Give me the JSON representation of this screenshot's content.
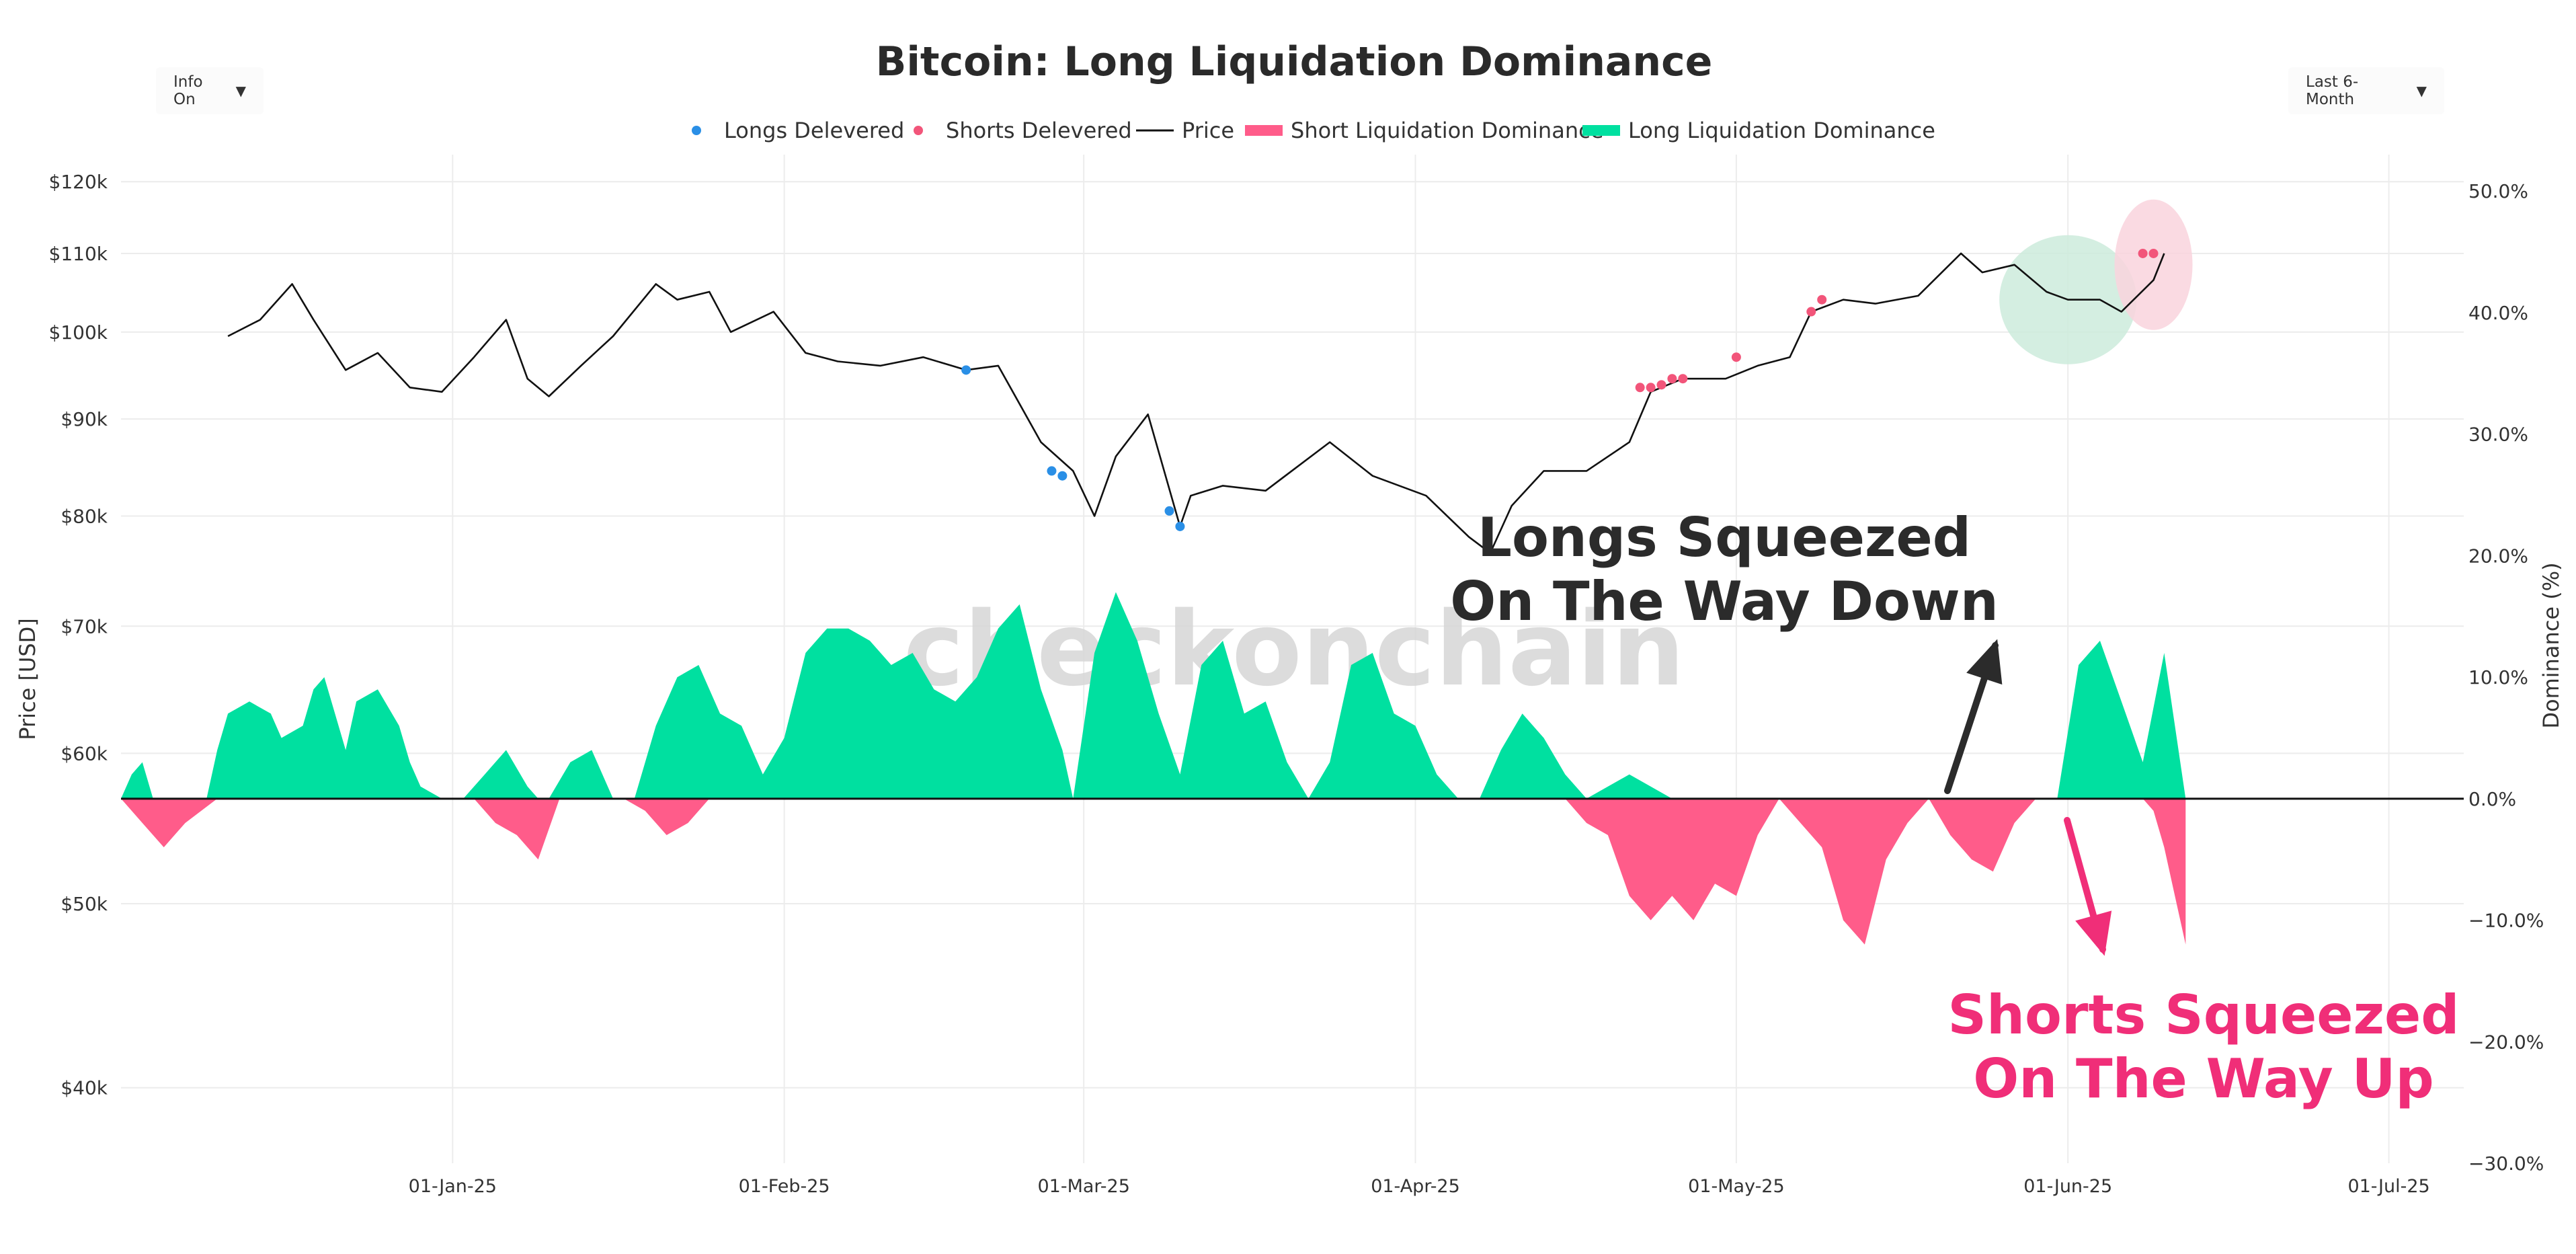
{
  "header": {
    "info_dropdown": "Info On",
    "range_dropdown": "Last 6-Month"
  },
  "chart_data": {
    "type": "line",
    "title": "Bitcoin: Long Liquidation Dominance",
    "watermark": "checkonchain",
    "legend_position": "top-center",
    "legend": [
      {
        "name": "Longs Delevered",
        "kind": "marker",
        "color": "#2a8fe6"
      },
      {
        "name": "Shorts Delevered",
        "kind": "marker",
        "color": "#f2557a"
      },
      {
        "name": "Price",
        "kind": "line",
        "color": "#111111"
      },
      {
        "name": "Short Liquidation Dominance",
        "kind": "band",
        "color": "#ff5c8a"
      },
      {
        "name": "Long Liquidation Dominance",
        "kind": "band",
        "color": "#00e0a0"
      }
    ],
    "xlabel": "",
    "y_left_label": "Price [USD]",
    "y_right_label": "Dominance (%)",
    "x_range": [
      "2024-12-01",
      "2025-07-08"
    ],
    "x_ticks": [
      {
        "date": "2025-01-01",
        "label": "01-Jan-25"
      },
      {
        "date": "2025-02-01",
        "label": "01-Feb-25"
      },
      {
        "date": "2025-03-01",
        "label": "01-Mar-25"
      },
      {
        "date": "2025-04-01",
        "label": "01-Apr-25"
      },
      {
        "date": "2025-05-01",
        "label": "01-May-25"
      },
      {
        "date": "2025-06-01",
        "label": "01-Jun-25"
      },
      {
        "date": "2025-07-01",
        "label": "01-Jul-25"
      }
    ],
    "y_left_scale": "log",
    "y_left_range": [
      36500,
      124000
    ],
    "y_left_ticks": [
      {
        "value": 40000,
        "label": "$40k"
      },
      {
        "value": 50000,
        "label": "$50k"
      },
      {
        "value": 60000,
        "label": "$60k"
      },
      {
        "value": 70000,
        "label": "$70k"
      },
      {
        "value": 80000,
        "label": "$80k"
      },
      {
        "value": 90000,
        "label": "$90k"
      },
      {
        "value": 100000,
        "label": "$100k"
      },
      {
        "value": 110000,
        "label": "$110k"
      },
      {
        "value": 120000,
        "label": "$120k"
      }
    ],
    "y_right_range": [
      -30,
      53
    ],
    "y_right_ticks": [
      {
        "value": 50,
        "label": "50.0%"
      },
      {
        "value": 40,
        "label": "40.0%"
      },
      {
        "value": 30,
        "label": "30.0%"
      },
      {
        "value": 20,
        "label": "20.0%"
      },
      {
        "value": 10,
        "label": "10.0%"
      },
      {
        "value": 0,
        "label": "0.0%"
      },
      {
        "value": -10,
        "label": "−10.0%"
      },
      {
        "value": -20,
        "label": "−20.0%"
      },
      {
        "value": -30,
        "label": "−30.0%"
      }
    ],
    "grid": true,
    "series": [
      {
        "name": "Price",
        "x": [
          "2024-12-11",
          "2024-12-14",
          "2024-12-17",
          "2024-12-19",
          "2024-12-22",
          "2024-12-25",
          "2024-12-28",
          "2024-12-31",
          "2025-01-03",
          "2025-01-06",
          "2025-01-08",
          "2025-01-10",
          "2025-01-13",
          "2025-01-16",
          "2025-01-20",
          "2025-01-22",
          "2025-01-25",
          "2025-01-27",
          "2025-01-31",
          "2025-02-03",
          "2025-02-06",
          "2025-02-10",
          "2025-02-14",
          "2025-02-18",
          "2025-02-21",
          "2025-02-25",
          "2025-02-28",
          "2025-03-02",
          "2025-03-04",
          "2025-03-07",
          "2025-03-10",
          "2025-03-11",
          "2025-03-14",
          "2025-03-18",
          "2025-03-24",
          "2025-03-28",
          "2025-04-02",
          "2025-04-06",
          "2025-04-08",
          "2025-04-10",
          "2025-04-13",
          "2025-04-17",
          "2025-04-21",
          "2025-04-23",
          "2025-04-26",
          "2025-04-30",
          "2025-05-03",
          "2025-05-06",
          "2025-05-08",
          "2025-05-11",
          "2025-05-14",
          "2025-05-18",
          "2025-05-22",
          "2025-05-24",
          "2025-05-27",
          "2025-05-30",
          "2025-06-01",
          "2025-06-04",
          "2025-06-06",
          "2025-06-09",
          "2025-06-10"
        ],
        "values": [
          99500,
          101500,
          106000,
          101500,
          95500,
          97500,
          93500,
          93000,
          97000,
          101500,
          94500,
          92500,
          96000,
          99500,
          106000,
          104000,
          105000,
          100000,
          102500,
          97500,
          96500,
          96000,
          97000,
          95500,
          96000,
          87500,
          84500,
          80000,
          86000,
          90500,
          79000,
          82000,
          83000,
          82500,
          87500,
          84000,
          82000,
          78000,
          76500,
          81000,
          84500,
          84500,
          87500,
          93000,
          94500,
          94500,
          96000,
          97000,
          102500,
          104000,
          103500,
          104500,
          110000,
          107500,
          108500,
          105000,
          104000,
          104000,
          102500,
          106500,
          110000
        ]
      },
      {
        "name": "Long Liquidation Dominance",
        "x": [
          "2024-12-01",
          "2024-12-02",
          "2024-12-03",
          "2024-12-04",
          "2024-12-05",
          "2024-12-07",
          "2024-12-09",
          "2024-12-10",
          "2024-12-11",
          "2024-12-13",
          "2024-12-15",
          "2024-12-16",
          "2024-12-18",
          "2024-12-19",
          "2024-12-20",
          "2024-12-22",
          "2024-12-23",
          "2024-12-25",
          "2024-12-27",
          "2024-12-28",
          "2024-12-29",
          "2024-12-31",
          "2025-01-02",
          "2025-01-04",
          "2025-01-06",
          "2025-01-08",
          "2025-01-09",
          "2025-01-10",
          "2025-01-12",
          "2025-01-14",
          "2025-01-16",
          "2025-01-18",
          "2025-01-20",
          "2025-01-22",
          "2025-01-24",
          "2025-01-26",
          "2025-01-28",
          "2025-01-30",
          "2025-02-01",
          "2025-02-03",
          "2025-02-05",
          "2025-02-07",
          "2025-02-09",
          "2025-02-11",
          "2025-02-13",
          "2025-02-15",
          "2025-02-17",
          "2025-02-19",
          "2025-02-21",
          "2025-02-23",
          "2025-02-25",
          "2025-02-27",
          "2025-02-28",
          "2025-03-02",
          "2025-03-04",
          "2025-03-06",
          "2025-03-08",
          "2025-03-10",
          "2025-03-12",
          "2025-03-14",
          "2025-03-16",
          "2025-03-18",
          "2025-03-20",
          "2025-03-22",
          "2025-03-24",
          "2025-03-26",
          "2025-03-28",
          "2025-03-30",
          "2025-04-01",
          "2025-04-03",
          "2025-04-05",
          "2025-04-07",
          "2025-04-09",
          "2025-04-11",
          "2025-04-13",
          "2025-04-15",
          "2025-04-17",
          "2025-04-19",
          "2025-04-21",
          "2025-04-23",
          "2025-04-25",
          "2025-04-27",
          "2025-04-29",
          "2025-05-01",
          "2025-05-03",
          "2025-05-05",
          "2025-05-07",
          "2025-05-09",
          "2025-05-11",
          "2025-05-13",
          "2025-05-15",
          "2025-05-17",
          "2025-05-19",
          "2025-05-21",
          "2025-05-23",
          "2025-05-25",
          "2025-05-27",
          "2025-05-29",
          "2025-05-31",
          "2025-06-02",
          "2025-06-04",
          "2025-06-06",
          "2025-06-08",
          "2025-06-10",
          "2025-06-12"
        ],
        "values": [
          0,
          2,
          3,
          0,
          0,
          0,
          0,
          4,
          7,
          8,
          7,
          5,
          6,
          9,
          10,
          4,
          8,
          9,
          6,
          3,
          1,
          0,
          0,
          2,
          4,
          1,
          0,
          0,
          3,
          4,
          0,
          0,
          6,
          10,
          11,
          7,
          6,
          2,
          5,
          12,
          14,
          14,
          13,
          11,
          12,
          9,
          8,
          10,
          14,
          16,
          9,
          4,
          0,
          12,
          17,
          13,
          7,
          2,
          11,
          13,
          7,
          8,
          3,
          0,
          3,
          11,
          12,
          7,
          6,
          2,
          0,
          0,
          4,
          7,
          5,
          2,
          0,
          1,
          2,
          1,
          0,
          0,
          0,
          0,
          0,
          0,
          0,
          0,
          0,
          0,
          0,
          0,
          0,
          0,
          0,
          0,
          0,
          0,
          0,
          11,
          13,
          8,
          3,
          12,
          0
        ]
      },
      {
        "name": "Short Liquidation Dominance",
        "x": [
          "2024-12-01",
          "2024-12-02",
          "2024-12-03",
          "2024-12-04",
          "2024-12-05",
          "2024-12-06",
          "2024-12-07",
          "2024-12-10",
          "2024-12-12",
          "2024-12-14",
          "2024-12-16",
          "2024-12-18",
          "2024-12-20",
          "2024-12-22",
          "2024-12-24",
          "2024-12-26",
          "2024-12-28",
          "2024-12-30",
          "2025-01-01",
          "2025-01-03",
          "2025-01-05",
          "2025-01-07",
          "2025-01-09",
          "2025-01-11",
          "2025-01-13",
          "2025-01-15",
          "2025-01-17",
          "2025-01-19",
          "2025-01-21",
          "2025-01-23",
          "2025-01-25",
          "2025-01-27",
          "2025-01-29",
          "2025-01-31",
          "2025-02-02",
          "2025-02-04",
          "2025-02-06",
          "2025-02-08",
          "2025-02-10",
          "2025-02-12",
          "2025-02-14",
          "2025-02-16",
          "2025-02-18",
          "2025-02-20",
          "2025-02-22",
          "2025-02-24",
          "2025-02-26",
          "2025-02-28",
          "2025-03-02",
          "2025-03-04",
          "2025-03-06",
          "2025-03-08",
          "2025-03-10",
          "2025-03-12",
          "2025-03-14",
          "2025-03-16",
          "2025-03-18",
          "2025-03-20",
          "2025-03-22",
          "2025-03-24",
          "2025-03-26",
          "2025-03-28",
          "2025-03-30",
          "2025-04-01",
          "2025-04-03",
          "2025-04-05",
          "2025-04-07",
          "2025-04-09",
          "2025-04-11",
          "2025-04-13",
          "2025-04-15",
          "2025-04-17",
          "2025-04-19",
          "2025-04-21",
          "2025-04-23",
          "2025-04-25",
          "2025-04-27",
          "2025-04-29",
          "2025-05-01",
          "2025-05-03",
          "2025-05-05",
          "2025-05-07",
          "2025-05-09",
          "2025-05-11",
          "2025-05-13",
          "2025-05-15",
          "2025-05-17",
          "2025-05-19",
          "2025-05-21",
          "2025-05-23",
          "2025-05-25",
          "2025-05-27",
          "2025-05-29",
          "2025-05-31",
          "2025-06-02",
          "2025-06-04",
          "2025-06-06",
          "2025-06-08",
          "2025-06-09",
          "2025-06-10",
          "2025-06-11",
          "2025-06-12"
        ],
        "values": [
          0,
          -1,
          -2,
          -3,
          -4,
          -3,
          -2,
          0,
          0,
          0,
          0,
          0,
          0,
          0,
          0,
          0,
          0,
          0,
          0,
          0,
          -2,
          -3,
          -5,
          0,
          0,
          0,
          0,
          -1,
          -3,
          -2,
          0,
          0,
          0,
          0,
          0,
          0,
          0,
          0,
          0,
          0,
          0,
          0,
          0,
          0,
          0,
          0,
          0,
          0,
          0,
          0,
          0,
          0,
          0,
          0,
          0,
          0,
          0,
          0,
          0,
          0,
          0,
          0,
          0,
          0,
          0,
          0,
          0,
          0,
          0,
          0,
          0,
          -2,
          -3,
          -8,
          -10,
          -8,
          -10,
          -7,
          -8,
          -3,
          0,
          -2,
          -4,
          -10,
          -12,
          -5,
          -2,
          0,
          -3,
          -5,
          -6,
          -2,
          0,
          0,
          0,
          0,
          0,
          0,
          -1,
          -4,
          -8,
          -12
        ]
      },
      {
        "name": "Longs Delevered",
        "x": [
          "2025-02-18",
          "2025-02-26",
          "2025-02-27",
          "2025-03-09",
          "2025-03-10"
        ],
        "values": [
          95500,
          84500,
          84000,
          80500,
          79000
        ]
      },
      {
        "name": "Shorts Delevered",
        "x": [
          "2025-04-22",
          "2025-04-23",
          "2025-04-24",
          "2025-04-25",
          "2025-04-26",
          "2025-05-01",
          "2025-05-08",
          "2025-05-09",
          "2025-06-08",
          "2025-06-09"
        ],
        "values": [
          93500,
          93500,
          93800,
          94500,
          94500,
          97000,
          102500,
          104000,
          110000,
          110000
        ]
      }
    ],
    "annotations": [
      {
        "text": "Longs Squeezed",
        "color": "#2b2b2b"
      },
      {
        "text": "On The Way Down",
        "color": "#2b2b2b"
      },
      {
        "text": "Shorts Squeezed",
        "color": "#f02e78"
      },
      {
        "text": "On The Way Up",
        "color": "#f02e78"
      }
    ],
    "colors": {
      "long_fill": "#00e0a0",
      "short_fill": "#ff5c8a",
      "price": "#111111",
      "longs_marker": "#2a8fe6",
      "shorts_marker": "#f2557a",
      "highlight_green": "#cdebdc",
      "highlight_pink": "#f9d3dd",
      "arrow_dark": "#2b2b2b",
      "arrow_pink": "#f02e78"
    }
  }
}
